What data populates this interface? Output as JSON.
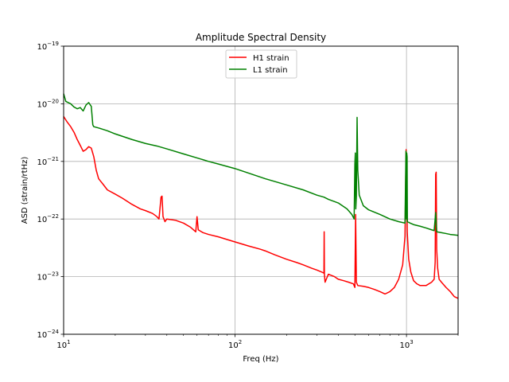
{
  "chart_data": {
    "type": "line",
    "title": "Amplitude Spectral Density",
    "xlabel": "Freq (Hz)",
    "ylabel": "ASD (strain/rtHz)",
    "xscale": "log",
    "yscale": "log",
    "xlim": [
      10,
      2000
    ],
    "ylim": [
      1e-24,
      1e-19
    ],
    "grid": true,
    "legend_position": "upper-center",
    "x_ticks": [
      {
        "value": 10,
        "base": "10",
        "exp": "1"
      },
      {
        "value": 100,
        "base": "10",
        "exp": "2"
      },
      {
        "value": 1000,
        "base": "10",
        "exp": "3"
      }
    ],
    "y_ticks": [
      {
        "value": 1e-24,
        "base": "10",
        "exp": "−24"
      },
      {
        "value": 1e-23,
        "base": "10",
        "exp": "−23"
      },
      {
        "value": 1e-22,
        "base": "10",
        "exp": "−22"
      },
      {
        "value": 1e-21,
        "base": "10",
        "exp": "−21"
      },
      {
        "value": 1e-20,
        "base": "10",
        "exp": "−20"
      },
      {
        "value": 1e-19,
        "base": "10",
        "exp": "−19"
      }
    ],
    "series": [
      {
        "name": "H1 strain",
        "color": "#ff0000",
        "points": [
          [
            10,
            6e-21
          ],
          [
            10.5,
            4.8e-21
          ],
          [
            11,
            4e-21
          ],
          [
            11.5,
            3.2e-21
          ],
          [
            12,
            2.4e-21
          ],
          [
            12.5,
            1.9e-21
          ],
          [
            13,
            1.5e-21
          ],
          [
            13.5,
            1.6e-21
          ],
          [
            14,
            1.8e-21
          ],
          [
            14.5,
            1.7e-21
          ],
          [
            15,
            1.2e-21
          ],
          [
            15.5,
            7e-22
          ],
          [
            16,
            5e-22
          ],
          [
            17,
            4e-22
          ],
          [
            18,
            3.2e-22
          ],
          [
            20,
            2.7e-22
          ],
          [
            22,
            2.3e-22
          ],
          [
            25,
            1.8e-22
          ],
          [
            28,
            1.5e-22
          ],
          [
            30,
            1.4e-22
          ],
          [
            33,
            1.25e-22
          ],
          [
            35,
            1.1e-22
          ],
          [
            36,
            1e-22
          ],
          [
            37,
            2.4e-22
          ],
          [
            37.5,
            2.5e-22
          ],
          [
            38,
            1.1e-22
          ],
          [
            39,
            9e-23
          ],
          [
            40,
            1e-22
          ],
          [
            45,
            9.5e-23
          ],
          [
            50,
            8.5e-23
          ],
          [
            55,
            7.2e-23
          ],
          [
            59,
            6e-23
          ],
          [
            60,
            1.1e-22
          ],
          [
            61,
            6.5e-23
          ],
          [
            65,
            5.8e-23
          ],
          [
            70,
            5.4e-23
          ],
          [
            80,
            4.9e-23
          ],
          [
            90,
            4.4e-23
          ],
          [
            100,
            4e-23
          ],
          [
            120,
            3.4e-23
          ],
          [
            140,
            3e-23
          ],
          [
            150,
            2.8e-23
          ],
          [
            170,
            2.4e-23
          ],
          [
            200,
            2e-23
          ],
          [
            230,
            1.75e-23
          ],
          [
            250,
            1.6e-23
          ],
          [
            280,
            1.4e-23
          ],
          [
            300,
            1.3e-23
          ],
          [
            320,
            1.2e-23
          ],
          [
            330,
            1.15e-23
          ],
          [
            331,
            6e-23
          ],
          [
            332,
            1.1e-23
          ],
          [
            335,
            8e-24
          ],
          [
            350,
            1.1e-23
          ],
          [
            380,
            1e-23
          ],
          [
            400,
            9e-24
          ],
          [
            430,
            8.5e-24
          ],
          [
            460,
            8e-24
          ],
          [
            490,
            7.5e-24
          ],
          [
            500,
            6.5e-24
          ],
          [
            505,
            1.2e-22
          ],
          [
            510,
            8e-24
          ],
          [
            520,
            7e-24
          ],
          [
            560,
            6.8e-24
          ],
          [
            600,
            6.5e-24
          ],
          [
            650,
            6e-24
          ],
          [
            700,
            5.5e-24
          ],
          [
            750,
            5e-24
          ],
          [
            800,
            5.5e-24
          ],
          [
            850,
            6.5e-24
          ],
          [
            900,
            9e-24
          ],
          [
            950,
            1.6e-23
          ],
          [
            980,
            5e-23
          ],
          [
            995,
            1.6e-21
          ],
          [
            1000,
            1.2e-21
          ],
          [
            1005,
            2e-22
          ],
          [
            1010,
            6e-23
          ],
          [
            1030,
            2e-23
          ],
          [
            1060,
            1.2e-23
          ],
          [
            1100,
            8.5e-24
          ],
          [
            1150,
            7.5e-24
          ],
          [
            1200,
            7e-24
          ],
          [
            1300,
            7e-24
          ],
          [
            1400,
            8e-24
          ],
          [
            1450,
            9e-24
          ],
          [
            1470,
            1.8e-23
          ],
          [
            1480,
            6e-22
          ],
          [
            1490,
            6.5e-22
          ],
          [
            1500,
            3e-23
          ],
          [
            1520,
            1.4e-23
          ],
          [
            1550,
            9e-24
          ],
          [
            1600,
            8e-24
          ],
          [
            1700,
            6.5e-24
          ],
          [
            1800,
            5.5e-24
          ],
          [
            1900,
            4.5e-24
          ],
          [
            2000,
            4.2e-24
          ]
        ]
      },
      {
        "name": "L1 strain",
        "color": "#008000",
        "points": [
          [
            10,
            1.5e-20
          ],
          [
            10.3,
            1.1e-20
          ],
          [
            11,
            1e-20
          ],
          [
            11.5,
            8.8e-21
          ],
          [
            12,
            8.2e-21
          ],
          [
            12.5,
            8.6e-21
          ],
          [
            13,
            7.5e-21
          ],
          [
            13.5,
            9.5e-21
          ],
          [
            14,
            1.05e-20
          ],
          [
            14.5,
            9e-21
          ],
          [
            14.8,
            4.3e-21
          ],
          [
            15,
            4e-21
          ],
          [
            16,
            3.8e-21
          ],
          [
            18,
            3.4e-21
          ],
          [
            20,
            3e-21
          ],
          [
            25,
            2.4e-21
          ],
          [
            30,
            2.05e-21
          ],
          [
            35,
            1.85e-21
          ],
          [
            40,
            1.65e-21
          ],
          [
            50,
            1.35e-21
          ],
          [
            60,
            1.15e-21
          ],
          [
            70,
            1e-21
          ],
          [
            80,
            9e-22
          ],
          [
            100,
            7.5e-22
          ],
          [
            150,
            5e-22
          ],
          [
            200,
            3.9e-22
          ],
          [
            250,
            3.2e-22
          ],
          [
            300,
            2.6e-22
          ],
          [
            330,
            2.4e-22
          ],
          [
            350,
            2.2e-22
          ],
          [
            400,
            1.9e-22
          ],
          [
            450,
            1.5e-22
          ],
          [
            480,
            1.2e-22
          ],
          [
            495,
            1e-22
          ],
          [
            500,
            9e-22
          ],
          [
            503,
            1.4e-21
          ],
          [
            506,
            1.5e-22
          ],
          [
            510,
            2.5e-22
          ],
          [
            515,
            5.8e-21
          ],
          [
            520,
            7e-22
          ],
          [
            530,
            2.6e-22
          ],
          [
            560,
            1.7e-22
          ],
          [
            600,
            1.45e-22
          ],
          [
            700,
            1.2e-22
          ],
          [
            800,
            1e-22
          ],
          [
            900,
            9e-23
          ],
          [
            980,
            8.5e-23
          ],
          [
            993,
            1.5e-21
          ],
          [
            998,
            1e-22
          ],
          [
            1003,
            1.4e-21
          ],
          [
            1008,
            1.2e-21
          ],
          [
            1012,
            9e-23
          ],
          [
            1050,
            8.5e-23
          ],
          [
            1100,
            8e-23
          ],
          [
            1200,
            7.5e-23
          ],
          [
            1300,
            7e-23
          ],
          [
            1400,
            6.5e-23
          ],
          [
            1450,
            6.3e-23
          ],
          [
            1480,
            1.3e-22
          ],
          [
            1500,
            6e-23
          ],
          [
            1600,
            5.8e-23
          ],
          [
            1700,
            5.6e-23
          ],
          [
            1800,
            5.4e-23
          ],
          [
            1900,
            5.3e-23
          ],
          [
            2000,
            5.2e-23
          ]
        ]
      }
    ]
  }
}
